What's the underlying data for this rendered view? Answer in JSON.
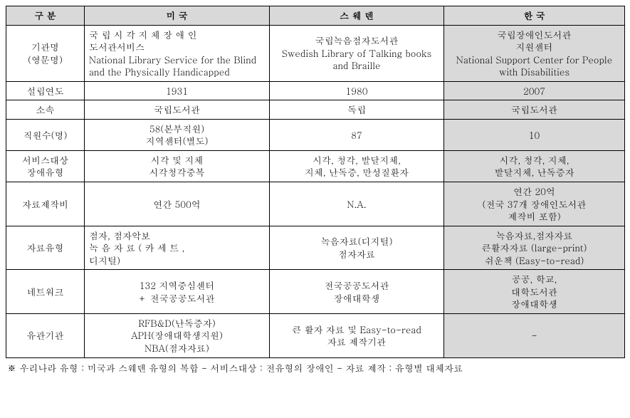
{
  "header": {
    "col0": "구 분",
    "col1": "미 국",
    "col2": "스 웨 덴",
    "col3": "한 국"
  },
  "rows": {
    "org": {
      "label": "기관명\n(영문명)",
      "us": "국 립 시 각 지 체 장 애 인\n도서관서비스\nNational Library Service for the Blind and the Physically Handicapped",
      "se": "국립녹음점자도서관\nSwedish Library of Talking books and Braille",
      "kr": "국립장애인도서관\n지원센터\nNational Support Center for People with Disabilities"
    },
    "founded": {
      "label": "설립연도",
      "us": "1931",
      "se": "1980",
      "kr": "2007"
    },
    "affil": {
      "label": "소속",
      "us": "국립도서관",
      "se": "독립",
      "kr": "국립도서관"
    },
    "staff": {
      "label": "직원수(명)",
      "us": "58(본부직원)\n지역센터(별도)",
      "se": "87",
      "kr": "10"
    },
    "target": {
      "label": "서비스대상\n장애유형",
      "us": "시각 및 지체\n시각청각중복",
      "se": "시각, 청각, 발달지체,\n지체, 난독증, 만성질환자",
      "kr": "시각, 청각, 지체,\n발달지체, 난독증자"
    },
    "budget": {
      "label": "자료제작비",
      "us": "연간 500억",
      "se": "N.A.",
      "kr": "연간 20억\n(전국 37개 장애인도서관\n제작비 포함)"
    },
    "materials": {
      "label": "자료유형",
      "us": "점자, 점자악보\n녹 음 자 료 ( 카 세 트 ,\n디지털)",
      "se": "녹음자료(디지털)\n점자자료",
      "kr": "녹음자료,점자자료\n큰활자자료 (large-print)\n쉬운책 (Easy-to-read)"
    },
    "network": {
      "label": "네트워크",
      "us": "132 지역중심센터\n+ 전국공공도서관",
      "se": "전국공공도서관\n장애대학생",
      "kr": "공공, 학교,\n대학도서관\n장애대학생"
    },
    "related": {
      "label": "유관기관",
      "us": "RFB&D(난독증자)\nAPH(장애대학생지원)\nNBA(점자자료)",
      "se": "큰 활자 자료 및 Easy-to-read\n자료 제작기관",
      "kr": "-"
    }
  },
  "footnote": "※ 우리나라 유형 : 미국과 스웨덴 유형의 복합 - 서비스대상 : 전유형의 장애인 - 자료 제작 : 유형별 대체자료"
}
